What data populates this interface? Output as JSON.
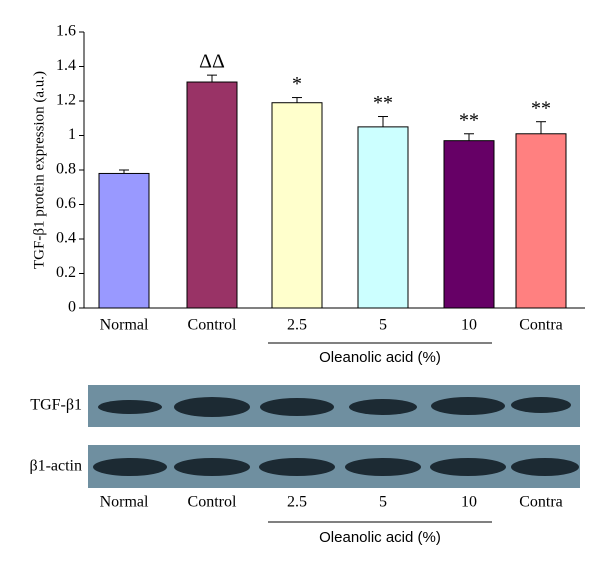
{
  "chart_data": {
    "type": "bar",
    "y_label": "TGF-β1 protein expression (a.u.)",
    "categories": [
      "Normal",
      "Control",
      "2.5",
      "5",
      "10",
      "Contra"
    ],
    "values": [
      0.78,
      1.31,
      1.19,
      1.05,
      0.97,
      1.01
    ],
    "errors": [
      0.02,
      0.04,
      0.03,
      0.06,
      0.04,
      0.07
    ],
    "annotations": [
      null,
      "ΔΔ",
      "*",
      "**",
      "**",
      "**"
    ],
    "colors": [
      "#9999ff",
      "#993366",
      "#ffffcc",
      "#ccffff",
      "#660066",
      "#ff8080"
    ],
    "group_label": "Oleanolic acid (%)",
    "ylim": [
      0,
      1.6
    ],
    "yticks": [
      0,
      0.2,
      0.4,
      0.6,
      0.8,
      1,
      1.2,
      1.4,
      1.6
    ],
    "blot_labels": [
      "TGF-β1",
      "β1-actin"
    ]
  }
}
